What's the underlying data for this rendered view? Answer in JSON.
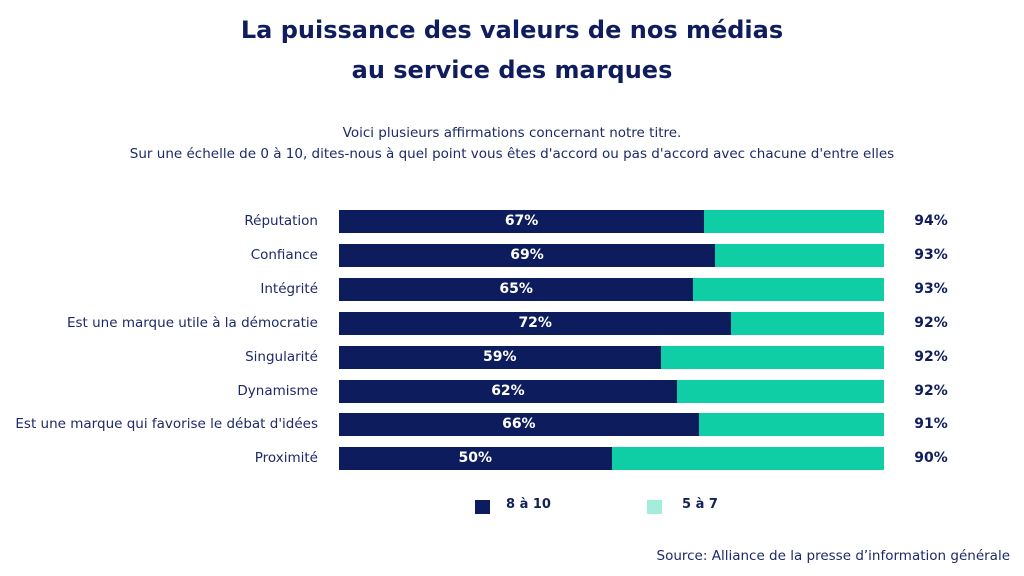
{
  "chart_data": {
    "type": "bar",
    "stacked": true,
    "orientation": "horizontal",
    "title": "La puissance des valeurs de nos médias au service des marques",
    "title_lines": [
      "La puissance des valeurs de nos médias",
      "au service des marques"
    ],
    "subtitle_lines": [
      "Voici plusieurs affirmations concernant notre titre.",
      "Sur une échelle de 0 à 10, dites-nous à quel point vous êtes d'accord ou pas d'accord avec chacune d'entre elles"
    ],
    "categories": [
      "Réputation",
      "Confiance",
      "Intégrité",
      "Est une marque utile à la démocratie",
      "Singularité",
      "Dynamisme",
      "Est une marque qui favorise le débat d'idées",
      "Proximité"
    ],
    "series": [
      {
        "name": "8 à 10",
        "color": "#0c1c5c",
        "values": [
          67,
          69,
          65,
          72,
          59,
          62,
          66,
          50
        ],
        "labels": [
          "67%",
          "69%",
          "65%",
          "72%",
          "59%",
          "62%",
          "66%",
          "50%"
        ]
      },
      {
        "name": "5 à 7",
        "color": "#0fcea6",
        "legend_color": "#a3eddc"
      }
    ],
    "totals": [
      94,
      93,
      93,
      92,
      92,
      92,
      91,
      90
    ],
    "total_labels": [
      "94%",
      "93%",
      "93%",
      "92%",
      "92%",
      "92%",
      "91%",
      "90%"
    ],
    "xlim": [
      0,
      100
    ],
    "grid": false,
    "legend": "bottom",
    "source": "Source: Alliance de la presse d’information générale"
  }
}
